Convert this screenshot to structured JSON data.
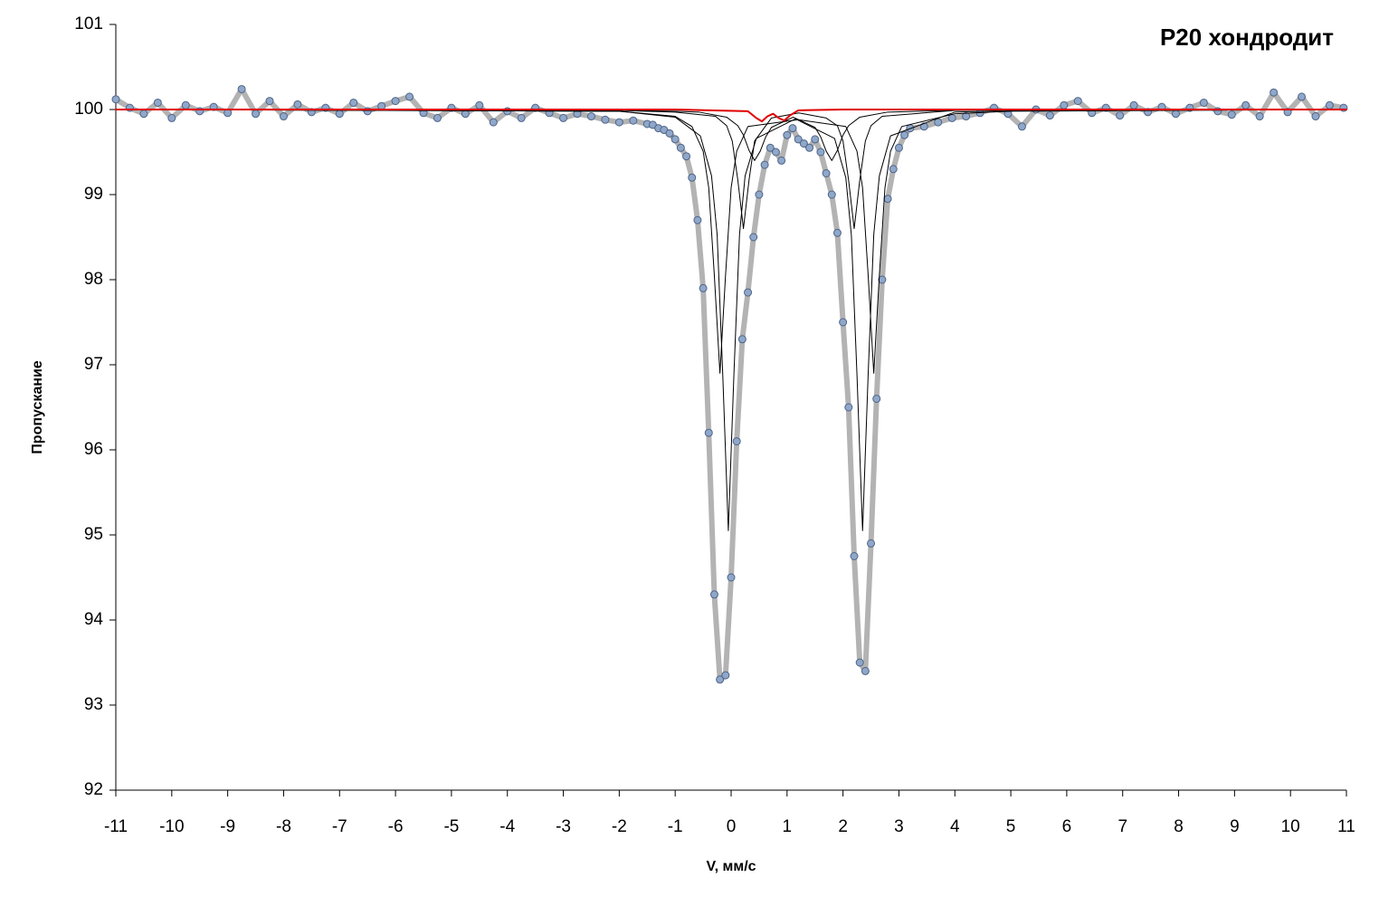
{
  "chart_data": {
    "type": "line",
    "title": "P20 хондродит",
    "x_label": "V, мм/с",
    "y_label": "Пропускание",
    "xlim": [
      -11,
      11
    ],
    "ylim": [
      92,
      101
    ],
    "xticks": [
      -11,
      -10,
      -9,
      -8,
      -7,
      -6,
      -5,
      -4,
      -3,
      -2,
      -1,
      0,
      1,
      2,
      3,
      4,
      5,
      6,
      7,
      8,
      9,
      10,
      11
    ],
    "yticks": [
      92,
      93,
      94,
      95,
      96,
      97,
      98,
      99,
      100,
      101
    ],
    "grid": false,
    "series": [
      {
        "color": "#b3b3b3",
        "line_width": 6,
        "markers": true,
        "marker_fill": "#8fa7c9",
        "marker_stroke": "#4f6488",
        "x": [
          -11,
          -10.75,
          -10.5,
          -10.25,
          -10,
          -9.75,
          -9.5,
          -9.25,
          -9,
          -8.75,
          -8.5,
          -8.25,
          -8,
          -7.75,
          -7.5,
          -7.25,
          -7,
          -6.75,
          -6.5,
          -6.25,
          -6,
          -5.75,
          -5.5,
          -5.25,
          -5,
          -4.75,
          -4.5,
          -4.25,
          -4,
          -3.75,
          -3.5,
          -3.25,
          -3,
          -2.75,
          -2.5,
          -2.25,
          -2,
          -1.75,
          -1.5,
          -1.4,
          -1.3,
          -1.2,
          -1.1,
          -1.0,
          -0.9,
          -0.8,
          -0.7,
          -0.6,
          -0.5,
          -0.4,
          -0.3,
          -0.2,
          -0.1,
          0,
          0.1,
          0.2,
          0.3,
          0.4,
          0.5,
          0.6,
          0.7,
          0.8,
          0.9,
          1.0,
          1.1,
          1.2,
          1.3,
          1.4,
          1.5,
          1.6,
          1.7,
          1.8,
          1.9,
          2.0,
          2.1,
          2.2,
          2.3,
          2.4,
          2.5,
          2.6,
          2.7,
          2.8,
          2.9,
          3.0,
          3.1,
          3.2,
          3.45,
          3.7,
          3.95,
          4.2,
          4.45,
          4.7,
          4.95,
          5.2,
          5.45,
          5.7,
          5.95,
          6.2,
          6.45,
          6.7,
          6.95,
          7.2,
          7.45,
          7.7,
          7.95,
          8.2,
          8.45,
          8.7,
          8.95,
          9.2,
          9.45,
          9.7,
          9.95,
          10.2,
          10.45,
          10.7,
          10.95
        ],
        "values": [
          100.12,
          100.02,
          99.95,
          100.08,
          99.9,
          100.05,
          99.98,
          100.03,
          99.96,
          100.24,
          99.95,
          100.1,
          99.92,
          100.06,
          99.97,
          100.02,
          99.95,
          100.08,
          99.98,
          100.04,
          100.1,
          100.15,
          99.96,
          99.9,
          100.02,
          99.95,
          100.05,
          99.85,
          99.98,
          99.9,
          100.02,
          99.96,
          99.9,
          99.95,
          99.92,
          99.88,
          99.85,
          99.87,
          99.83,
          99.82,
          99.78,
          99.76,
          99.72,
          99.65,
          99.55,
          99.45,
          99.2,
          98.7,
          97.9,
          96.2,
          94.3,
          93.3,
          93.35,
          94.5,
          96.1,
          97.3,
          97.85,
          98.5,
          99.0,
          99.35,
          99.55,
          99.5,
          99.4,
          99.7,
          99.78,
          99.65,
          99.6,
          99.55,
          99.65,
          99.5,
          99.25,
          99.0,
          98.55,
          97.5,
          96.5,
          94.75,
          93.5,
          93.4,
          94.9,
          96.6,
          98.0,
          98.95,
          99.3,
          99.55,
          99.7,
          99.78,
          99.8,
          99.85,
          99.9,
          99.92,
          99.96,
          100.02,
          99.95,
          99.8,
          100.0,
          99.93,
          100.05,
          100.1,
          99.96,
          100.02,
          99.93,
          100.05,
          99.97,
          100.03,
          99.95,
          100.02,
          100.08,
          99.98,
          99.94,
          100.05,
          99.92,
          100.2,
          99.97,
          100.15,
          99.92,
          100.05,
          100.02
        ]
      },
      {
        "color": "#000000",
        "line_width": 1,
        "markers": false,
        "x": [
          -11,
          -2,
          -1,
          -0.55,
          -0.35,
          -0.25,
          -0.15,
          -0.05,
          0.05,
          0.15,
          0.25,
          0.45,
          1.15,
          1.85,
          2.05,
          2.15,
          2.25,
          2.35,
          2.45,
          2.55,
          2.65,
          2.85,
          4,
          5,
          11
        ],
        "values": [
          100,
          99.98,
          99.91,
          99.69,
          99.22,
          98.53,
          96.89,
          95.05,
          96.89,
          98.53,
          99.22,
          99.66,
          99.89,
          99.66,
          99.2,
          98.52,
          96.88,
          95.05,
          96.89,
          98.53,
          99.22,
          99.69,
          99.97,
          99.99,
          100
        ]
      },
      {
        "color": "#000000",
        "line_width": 1,
        "markers": false,
        "x": [
          -11,
          -2,
          -1,
          -0.7,
          -0.5,
          -0.4,
          -0.3,
          -0.2,
          -0.1,
          0,
          0.1,
          0.3,
          1.2,
          2.05,
          2.25,
          2.35,
          2.45,
          2.55,
          2.65,
          2.75,
          2.85,
          3.05,
          4,
          5,
          11
        ],
        "values": [
          100,
          99.98,
          99.92,
          99.8,
          99.51,
          99.08,
          98.05,
          96.9,
          98.05,
          99.08,
          99.51,
          99.8,
          99.88,
          99.8,
          99.51,
          99.08,
          98.05,
          96.9,
          98.05,
          99.08,
          99.51,
          99.8,
          99.95,
          99.98,
          100
        ]
      },
      {
        "color": "#000000",
        "line_width": 1,
        "markers": false,
        "x": [
          -11,
          -2,
          -1,
          -0.28,
          -0.08,
          0.02,
          0.12,
          0.22,
          0.32,
          0.42,
          0.72,
          1.21,
          1.7,
          1.9,
          2.0,
          2.1,
          2.2,
          2.3,
          2.4,
          2.5,
          2.7,
          4,
          5,
          11
        ],
        "values": [
          100,
          99.99,
          99.97,
          99.92,
          99.81,
          99.63,
          99.17,
          98.6,
          99.17,
          99.63,
          99.9,
          99.96,
          99.9,
          99.81,
          99.63,
          99.17,
          98.6,
          99.17,
          99.63,
          99.81,
          99.92,
          99.99,
          100,
          100
        ]
      },
      {
        "color": "#000000",
        "line_width": 1,
        "markers": false,
        "x": [
          -11,
          -2,
          -1,
          -0.58,
          -0.08,
          0.12,
          0.22,
          0.32,
          0.42,
          0.52,
          0.62,
          0.72,
          1.11,
          1.5,
          1.6,
          1.7,
          1.8,
          1.9,
          2.0,
          2.1,
          2.3,
          2.8,
          4,
          5,
          11
        ],
        "values": [
          100,
          99.99,
          99.98,
          99.97,
          99.91,
          99.81,
          99.7,
          99.52,
          99.4,
          99.51,
          99.68,
          99.79,
          99.91,
          99.79,
          99.68,
          99.51,
          99.4,
          99.52,
          99.7,
          99.81,
          99.91,
          99.97,
          99.99,
          100,
          100
        ]
      },
      {
        "color": "#e00000",
        "line_width": 2,
        "markers": false,
        "x": [
          -11,
          -1,
          0.3,
          0.45,
          0.55,
          0.65,
          0.75,
          0.85,
          0.95,
          1.05,
          1.2,
          2,
          11
        ],
        "values": [
          100,
          100,
          99.98,
          99.9,
          99.86,
          99.92,
          99.95,
          99.9,
          99.87,
          99.93,
          99.99,
          100,
          100
        ]
      }
    ]
  }
}
